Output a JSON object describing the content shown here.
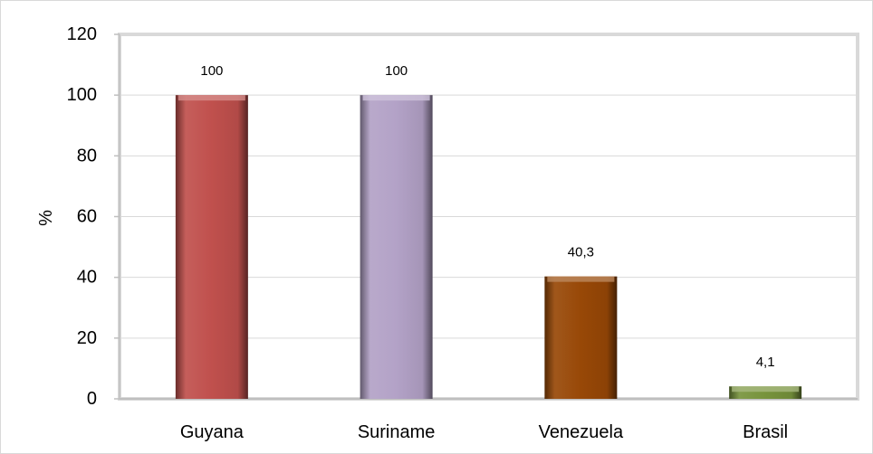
{
  "chart_data": {
    "type": "bar",
    "categories": [
      "Guyana",
      "Suriname",
      "Venezuela",
      "Brasil"
    ],
    "values": [
      100,
      100,
      40.3,
      4.1
    ],
    "value_labels": [
      "100",
      "100",
      "40,3",
      "4,1"
    ],
    "ylabel": "%",
    "ylim": [
      0,
      120
    ],
    "yticks": [
      "0",
      "20",
      "40",
      "60",
      "80",
      "100",
      "120"
    ],
    "grid": true,
    "legend": "none",
    "bar_colors": [
      "#c0504d",
      "#b3a2c7",
      "#984807",
      "#77933c"
    ],
    "grid_color": "#d9d9d9",
    "axis_color": "#bfbfbf"
  }
}
